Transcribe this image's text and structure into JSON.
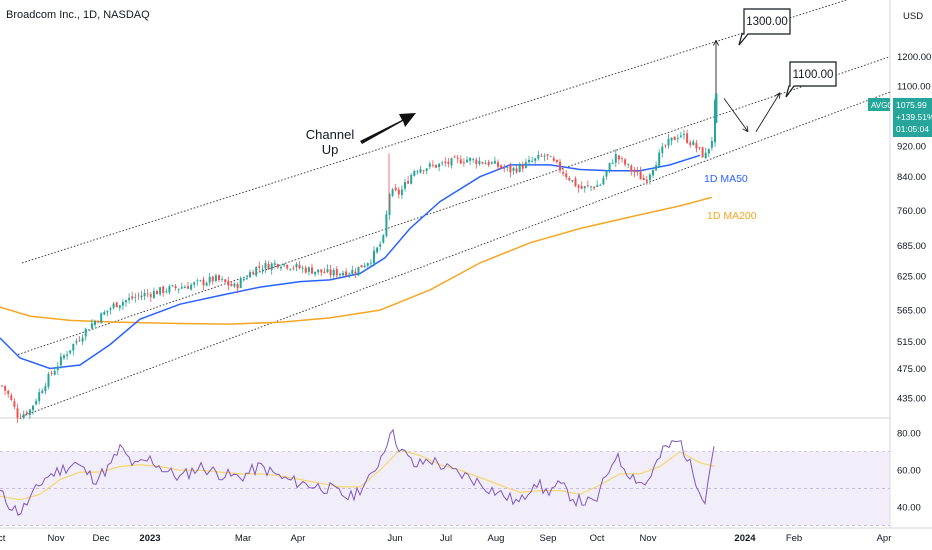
{
  "header": {
    "title": "Broadcom Inc., 1D, NASDAQ"
  },
  "price_axis": {
    "currency": "USD",
    "ticks": [
      "1200.00",
      "1100.00",
      "920.00",
      "840.00",
      "760.00",
      "685.00",
      "625.00",
      "565.00",
      "515.00",
      "475.00",
      "435.00"
    ],
    "price_badge": {
      "ticker": "AVGO",
      "price": "1075.99",
      "change": "+139.51%",
      "countdown": "01:05:04",
      "color": "#26a69a"
    }
  },
  "time_axis": {
    "labels": [
      "Oct",
      "Nov",
      "Dec",
      "2023",
      "Mar",
      "Apr",
      "Jun",
      "Jul",
      "Aug",
      "Sep",
      "Oct",
      "Nov",
      "2024",
      "Feb",
      "Apr"
    ]
  },
  "rsi_axis": {
    "ticks": [
      "80.00",
      "60.00",
      "40.00"
    ]
  },
  "annotations": {
    "target_high": "1300.00",
    "target_low": "1100.00",
    "channel_label_line1": "Channel",
    "channel_label_line2": "Up",
    "ma50_label": "1D MA50",
    "ma200_label": "1D MA200"
  },
  "colors": {
    "up": "#26a69a",
    "down": "#ef5350",
    "ma50": "#2962ff",
    "ma200": "#f5a623",
    "rsi": "#7e57c2",
    "rsi_ma": "#f5d76e",
    "rsi_band": "#ede7f6",
    "ma50_label": "#2962ff",
    "ma200_label": "#f5a623"
  },
  "chart_data": {
    "type": "candlestick",
    "symbol": "AVGO",
    "timeframe": "1D",
    "price_anchors": [
      {
        "x": 0,
        "y": 455
      },
      {
        "x": 8,
        "y": 440
      },
      {
        "x": 18,
        "y": 412
      },
      {
        "x": 30,
        "y": 420
      },
      {
        "x": 45,
        "y": 455
      },
      {
        "x": 65,
        "y": 495
      },
      {
        "x": 90,
        "y": 540
      },
      {
        "x": 115,
        "y": 575
      },
      {
        "x": 140,
        "y": 590
      },
      {
        "x": 165,
        "y": 600
      },
      {
        "x": 195,
        "y": 610
      },
      {
        "x": 215,
        "y": 620
      },
      {
        "x": 235,
        "y": 605
      },
      {
        "x": 255,
        "y": 640
      },
      {
        "x": 280,
        "y": 650
      },
      {
        "x": 300,
        "y": 640
      },
      {
        "x": 330,
        "y": 630
      },
      {
        "x": 355,
        "y": 635
      },
      {
        "x": 372,
        "y": 660
      },
      {
        "x": 384,
        "y": 700
      },
      {
        "x": 389,
        "y": 800
      },
      {
        "x": 400,
        "y": 800
      },
      {
        "x": 415,
        "y": 860
      },
      {
        "x": 440,
        "y": 870
      },
      {
        "x": 465,
        "y": 885
      },
      {
        "x": 490,
        "y": 875
      },
      {
        "x": 510,
        "y": 855
      },
      {
        "x": 525,
        "y": 870
      },
      {
        "x": 545,
        "y": 895
      },
      {
        "x": 560,
        "y": 860
      },
      {
        "x": 580,
        "y": 810
      },
      {
        "x": 600,
        "y": 820
      },
      {
        "x": 615,
        "y": 895
      },
      {
        "x": 630,
        "y": 860
      },
      {
        "x": 645,
        "y": 830
      },
      {
        "x": 665,
        "y": 920
      },
      {
        "x": 680,
        "y": 955
      },
      {
        "x": 695,
        "y": 920
      },
      {
        "x": 705,
        "y": 890
      },
      {
        "x": 712,
        "y": 940
      },
      {
        "x": 716,
        "y": 1076
      }
    ],
    "ma50": [
      {
        "x": 0,
        "y": 520
      },
      {
        "x": 20,
        "y": 490
      },
      {
        "x": 50,
        "y": 475
      },
      {
        "x": 80,
        "y": 480
      },
      {
        "x": 110,
        "y": 510
      },
      {
        "x": 140,
        "y": 550
      },
      {
        "x": 180,
        "y": 575
      },
      {
        "x": 220,
        "y": 590
      },
      {
        "x": 260,
        "y": 605
      },
      {
        "x": 300,
        "y": 615
      },
      {
        "x": 330,
        "y": 618
      },
      {
        "x": 360,
        "y": 630
      },
      {
        "x": 385,
        "y": 660
      },
      {
        "x": 410,
        "y": 720
      },
      {
        "x": 440,
        "y": 780
      },
      {
        "x": 480,
        "y": 840
      },
      {
        "x": 510,
        "y": 870
      },
      {
        "x": 550,
        "y": 870
      },
      {
        "x": 580,
        "y": 858
      },
      {
        "x": 610,
        "y": 855
      },
      {
        "x": 640,
        "y": 855
      },
      {
        "x": 670,
        "y": 870
      },
      {
        "x": 700,
        "y": 895
      }
    ],
    "ma200": [
      {
        "x": 0,
        "y": 570
      },
      {
        "x": 30,
        "y": 555
      },
      {
        "x": 70,
        "y": 548
      },
      {
        "x": 120,
        "y": 545
      },
      {
        "x": 180,
        "y": 543
      },
      {
        "x": 230,
        "y": 542
      },
      {
        "x": 280,
        "y": 545
      },
      {
        "x": 330,
        "y": 552
      },
      {
        "x": 380,
        "y": 565
      },
      {
        "x": 430,
        "y": 600
      },
      {
        "x": 480,
        "y": 650
      },
      {
        "x": 530,
        "y": 690
      },
      {
        "x": 580,
        "y": 720
      },
      {
        "x": 630,
        "y": 745
      },
      {
        "x": 680,
        "y": 770
      },
      {
        "x": 712,
        "y": 790
      }
    ],
    "rsi": [
      {
        "x": 0,
        "y": 48
      },
      {
        "x": 10,
        "y": 41
      },
      {
        "x": 20,
        "y": 37
      },
      {
        "x": 32,
        "y": 46
      },
      {
        "x": 45,
        "y": 56
      },
      {
        "x": 60,
        "y": 60
      },
      {
        "x": 75,
        "y": 64
      },
      {
        "x": 95,
        "y": 55
      },
      {
        "x": 110,
        "y": 62
      },
      {
        "x": 120,
        "y": 72
      },
      {
        "x": 135,
        "y": 62
      },
      {
        "x": 150,
        "y": 66
      },
      {
        "x": 165,
        "y": 60
      },
      {
        "x": 180,
        "y": 56
      },
      {
        "x": 200,
        "y": 62
      },
      {
        "x": 220,
        "y": 58
      },
      {
        "x": 240,
        "y": 56
      },
      {
        "x": 260,
        "y": 62
      },
      {
        "x": 285,
        "y": 55
      },
      {
        "x": 310,
        "y": 52
      },
      {
        "x": 330,
        "y": 50
      },
      {
        "x": 350,
        "y": 45
      },
      {
        "x": 370,
        "y": 55
      },
      {
        "x": 385,
        "y": 72
      },
      {
        "x": 390,
        "y": 82
      },
      {
        "x": 400,
        "y": 72
      },
      {
        "x": 415,
        "y": 62
      },
      {
        "x": 430,
        "y": 66
      },
      {
        "x": 450,
        "y": 60
      },
      {
        "x": 470,
        "y": 56
      },
      {
        "x": 490,
        "y": 50
      },
      {
        "x": 505,
        "y": 46
      },
      {
        "x": 520,
        "y": 42
      },
      {
        "x": 535,
        "y": 55
      },
      {
        "x": 545,
        "y": 48
      },
      {
        "x": 560,
        "y": 52
      },
      {
        "x": 575,
        "y": 44
      },
      {
        "x": 595,
        "y": 42
      },
      {
        "x": 615,
        "y": 68
      },
      {
        "x": 630,
        "y": 58
      },
      {
        "x": 645,
        "y": 52
      },
      {
        "x": 665,
        "y": 72
      },
      {
        "x": 680,
        "y": 76
      },
      {
        "x": 695,
        "y": 56
      },
      {
        "x": 705,
        "y": 44
      },
      {
        "x": 715,
        "y": 78
      }
    ],
    "rsi_ma": [
      {
        "x": 0,
        "y": 46
      },
      {
        "x": 20,
        "y": 44
      },
      {
        "x": 40,
        "y": 47
      },
      {
        "x": 60,
        "y": 55
      },
      {
        "x": 80,
        "y": 59
      },
      {
        "x": 100,
        "y": 59
      },
      {
        "x": 120,
        "y": 62
      },
      {
        "x": 140,
        "y": 63
      },
      {
        "x": 160,
        "y": 62
      },
      {
        "x": 180,
        "y": 60
      },
      {
        "x": 200,
        "y": 60
      },
      {
        "x": 220,
        "y": 59
      },
      {
        "x": 240,
        "y": 58
      },
      {
        "x": 260,
        "y": 58
      },
      {
        "x": 280,
        "y": 57
      },
      {
        "x": 300,
        "y": 55
      },
      {
        "x": 320,
        "y": 53
      },
      {
        "x": 340,
        "y": 51
      },
      {
        "x": 360,
        "y": 51
      },
      {
        "x": 380,
        "y": 60
      },
      {
        "x": 400,
        "y": 71
      },
      {
        "x": 420,
        "y": 68
      },
      {
        "x": 440,
        "y": 63
      },
      {
        "x": 460,
        "y": 60
      },
      {
        "x": 480,
        "y": 56
      },
      {
        "x": 500,
        "y": 52
      },
      {
        "x": 520,
        "y": 48
      },
      {
        "x": 540,
        "y": 49
      },
      {
        "x": 560,
        "y": 49
      },
      {
        "x": 580,
        "y": 47
      },
      {
        "x": 600,
        "y": 52
      },
      {
        "x": 620,
        "y": 58
      },
      {
        "x": 640,
        "y": 58
      },
      {
        "x": 660,
        "y": 62
      },
      {
        "x": 680,
        "y": 70
      },
      {
        "x": 700,
        "y": 64
      },
      {
        "x": 715,
        "y": 62
      }
    ],
    "channel_lines": [
      {
        "name": "upper",
        "from": {
          "x": 22,
          "y": 650
        },
        "to": {
          "x": 890,
          "y": 1480
        }
      },
      {
        "name": "middle",
        "from": {
          "x": 18,
          "y": 495
        },
        "to": {
          "x": 890,
          "y": 1200
        }
      },
      {
        "name": "lower",
        "from": {
          "x": 22,
          "y": 412
        },
        "to": {
          "x": 890,
          "y": 1080
        }
      }
    ],
    "projections": [
      {
        "from": {
          "x": 716,
          "y": 1076
        },
        "to": {
          "x": 716,
          "y": 1260
        }
      },
      {
        "from": {
          "x": 724,
          "y": 1060
        },
        "to": {
          "x": 748,
          "y": 960
        }
      },
      {
        "from": {
          "x": 756,
          "y": 960
        },
        "to": {
          "x": 780,
          "y": 1078
        }
      }
    ],
    "targets": [
      {
        "label": "1300.00",
        "value": 1300
      },
      {
        "label": "1100.00",
        "value": 1100
      }
    ]
  }
}
